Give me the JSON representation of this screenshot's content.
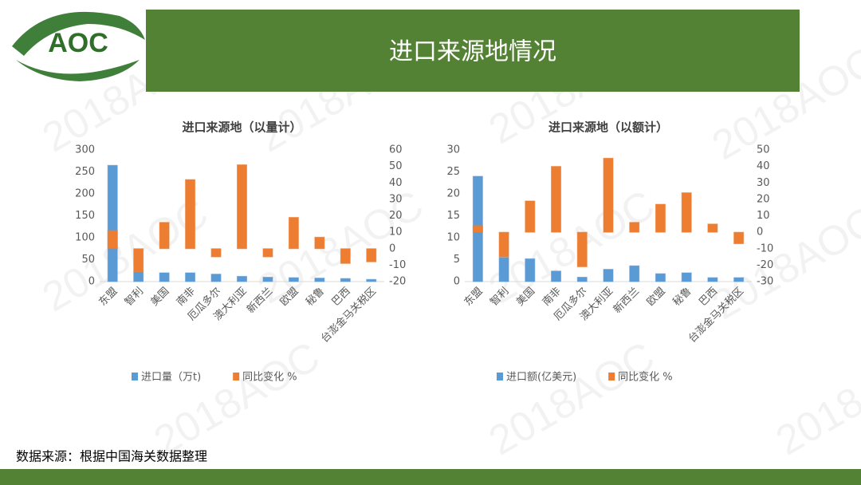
{
  "header": {
    "title": "进口来源地情况"
  },
  "logo": {
    "text": "AOC"
  },
  "watermark": "2018AOC",
  "footer": {
    "source": "数据来源：根据中国海关数据整理"
  },
  "chart_data": [
    {
      "type": "bar",
      "title": "进口来源地（以量计）",
      "categories": [
        "东盟",
        "智利",
        "美国",
        "南非",
        "厄瓜多尔",
        "澳大利亚",
        "新西兰",
        "欧盟",
        "秘鲁",
        "巴西",
        "台澎金马关税区"
      ],
      "series": [
        {
          "name": "进口量（万t)",
          "color": "#5b9bd5",
          "values": [
            265,
            22,
            20,
            20,
            17,
            12,
            10,
            9,
            8,
            7,
            5
          ]
        },
        {
          "name": "同比变化 %",
          "color": "#ed7d31",
          "axis": "y2",
          "values": [
            11,
            -14,
            16,
            42,
            -5,
            51,
            -5,
            19,
            7,
            -9,
            -8
          ]
        }
      ],
      "ylim": [
        0,
        300
      ],
      "yticks": [
        0,
        50,
        100,
        150,
        200,
        250,
        300
      ],
      "y2lim": [
        -20,
        60
      ],
      "y2ticks": [
        -20,
        -10,
        0,
        10,
        20,
        30,
        40,
        50,
        60
      ]
    },
    {
      "type": "bar",
      "title": "进口来源地（以额计）",
      "categories": [
        "东盟",
        "智利",
        "美国",
        "南非",
        "厄瓜多尔",
        "澳大利亚",
        "新西兰",
        "欧盟",
        "秘鲁",
        "巴西",
        "台澎金马关税区"
      ],
      "series": [
        {
          "name": "进口额(亿美元)",
          "color": "#5b9bd5",
          "values": [
            24,
            5.5,
            5.2,
            2.4,
            1,
            2.8,
            3.6,
            1.8,
            2,
            0.9,
            0.9
          ]
        },
        {
          "name": "同比变化 %",
          "color": "#ed7d31",
          "axis": "y2",
          "values": [
            4,
            -15,
            19,
            40,
            -21,
            45,
            6,
            17,
            24,
            5,
            -7
          ]
        }
      ],
      "ylim": [
        0,
        30
      ],
      "yticks": [
        0,
        5,
        10,
        15,
        20,
        25,
        30
      ],
      "y2lim": [
        -30,
        50
      ],
      "y2ticks": [
        -30,
        -20,
        -10,
        0,
        10,
        20,
        30,
        40,
        50
      ]
    }
  ]
}
